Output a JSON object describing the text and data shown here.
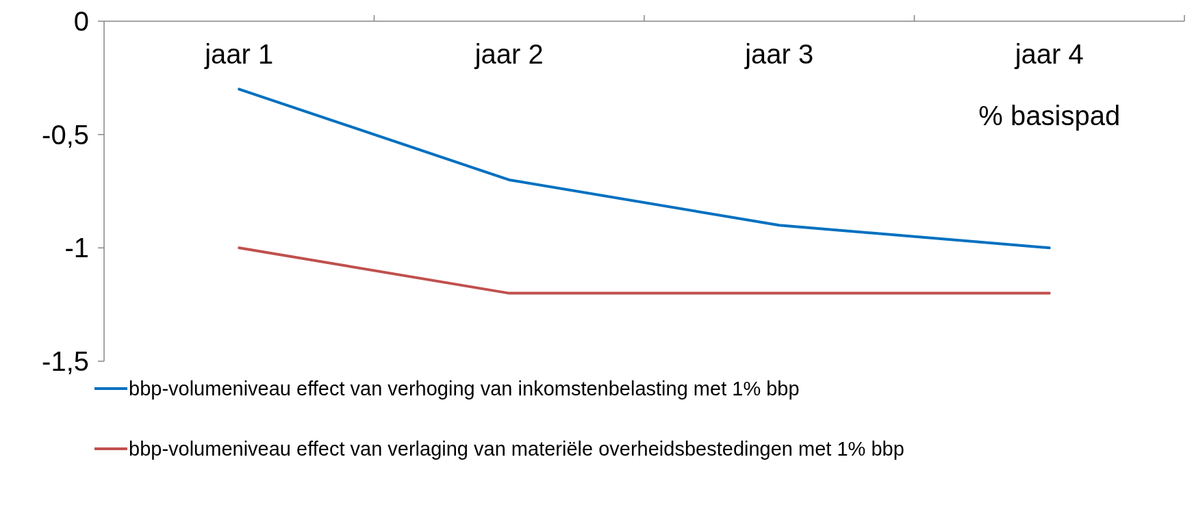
{
  "chart_data": {
    "type": "line",
    "categories": [
      "jaar 1",
      "jaar 2",
      "jaar 3",
      "jaar 4"
    ],
    "series": [
      {
        "name": "bbp-volumeniveau effect van verhoging van inkomstenbelasting met 1% bbp",
        "color": "#0070c0",
        "values": [
          -0.3,
          -0.7,
          -0.9,
          -1.0
        ]
      },
      {
        "name": "bbp-volumeniveau effect van verlaging van materiële overheidsbestedingen met 1% bbp",
        "color": "#c0504d",
        "values": [
          -1.0,
          -1.2,
          -1.2,
          -1.2
        ]
      }
    ],
    "ylim": [
      -1.5,
      0
    ],
    "yticks": [
      {
        "value": 0,
        "label": "0"
      },
      {
        "value": -0.5,
        "label": "-0,5"
      },
      {
        "value": -1,
        "label": "-1"
      },
      {
        "value": -1.5,
        "label": "-1,5"
      }
    ],
    "annotations": [
      "% basispad"
    ],
    "legend": "bottom",
    "marker": "none",
    "line_style": "solid",
    "grid": false
  }
}
